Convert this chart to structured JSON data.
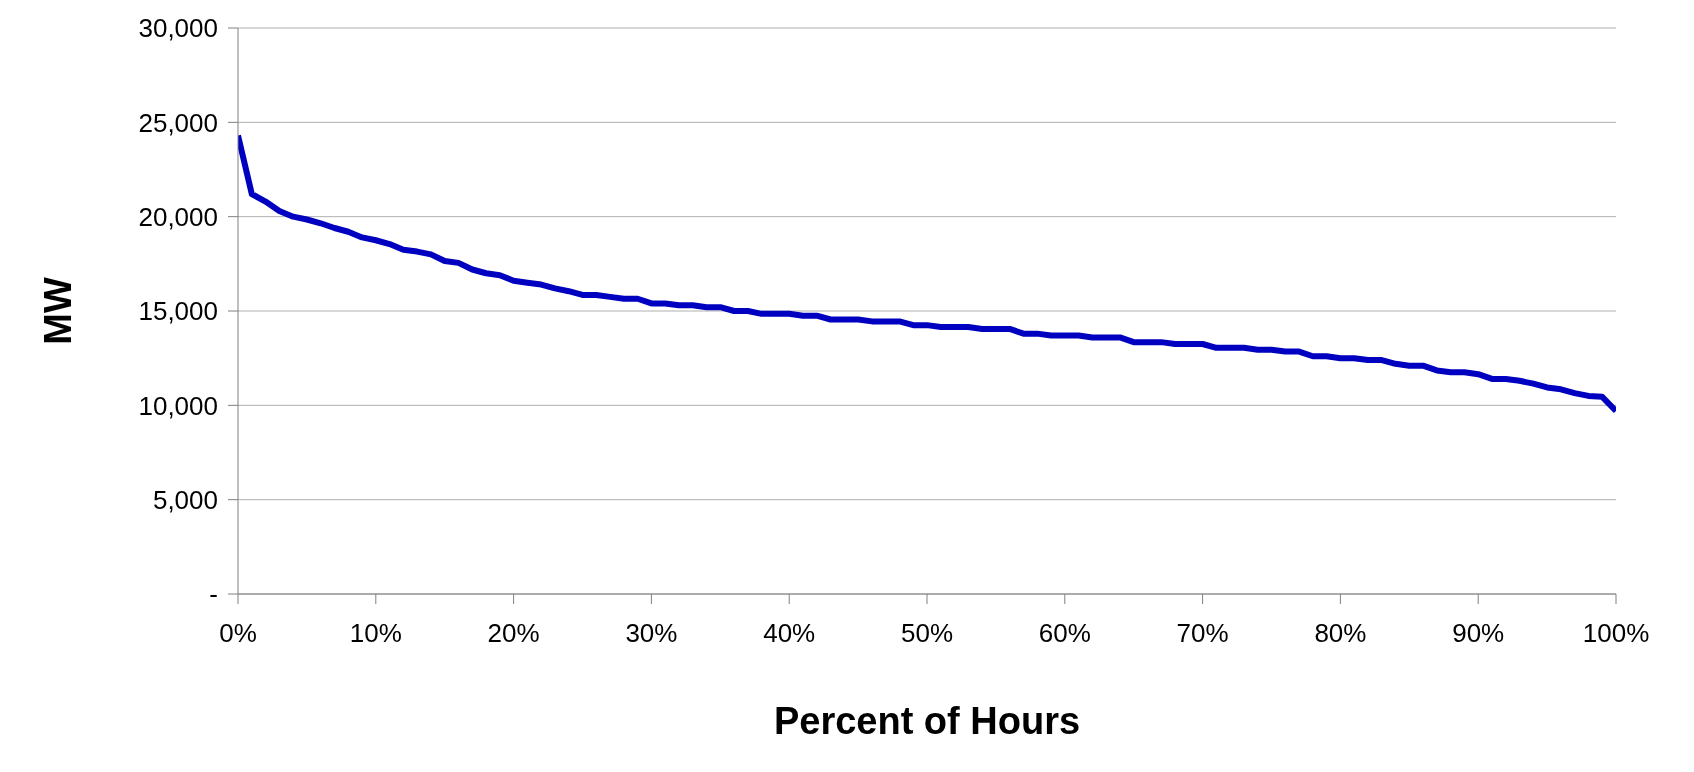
{
  "chart_data": {
    "type": "line",
    "xlabel": "Percent of Hours",
    "ylabel": "MW",
    "x": [
      0,
      1,
      2,
      3,
      4,
      5,
      6,
      7,
      8,
      9,
      10,
      11,
      12,
      13,
      14,
      15,
      16,
      17,
      18,
      19,
      20,
      21,
      22,
      23,
      24,
      25,
      26,
      27,
      28,
      29,
      30,
      31,
      32,
      33,
      34,
      35,
      36,
      37,
      38,
      39,
      40,
      41,
      42,
      43,
      44,
      45,
      46,
      47,
      48,
      49,
      50,
      51,
      52,
      53,
      54,
      55,
      56,
      57,
      58,
      59,
      60,
      61,
      62,
      63,
      64,
      65,
      66,
      67,
      68,
      69,
      70,
      71,
      72,
      73,
      74,
      75,
      76,
      77,
      78,
      79,
      80,
      81,
      82,
      83,
      84,
      85,
      86,
      87,
      88,
      89,
      90,
      91,
      92,
      93,
      94,
      95,
      96,
      97,
      98,
      99,
      100
    ],
    "series": [
      {
        "color": "#0000c0",
        "values": [
          24300,
          21200,
          20800,
          20300,
          20000,
          19850,
          19650,
          19400,
          19200,
          18900,
          18750,
          18550,
          18250,
          18150,
          18000,
          17650,
          17550,
          17200,
          17000,
          16900,
          16600,
          16500,
          16400,
          16200,
          16050,
          15850,
          15850,
          15750,
          15650,
          15650,
          15400,
          15400,
          15300,
          15300,
          15200,
          15200,
          15000,
          15000,
          14850,
          14850,
          14850,
          14750,
          14750,
          14550,
          14550,
          14550,
          14450,
          14450,
          14450,
          14250,
          14250,
          14150,
          14150,
          14150,
          14050,
          14050,
          14050,
          13800,
          13800,
          13700,
          13700,
          13700,
          13600,
          13600,
          13600,
          13350,
          13350,
          13350,
          13250,
          13250,
          13250,
          13050,
          13050,
          13050,
          12950,
          12950,
          12850,
          12850,
          12600,
          12600,
          12500,
          12500,
          12400,
          12400,
          12200,
          12100,
          12100,
          11850,
          11750,
          11750,
          11650,
          11400,
          11400,
          11300,
          11150,
          10950,
          10850,
          10650,
          10500,
          10450,
          9700
        ]
      }
    ],
    "xlim": [
      0,
      100
    ],
    "xticks": [
      {
        "value": 0,
        "label": "0%"
      },
      {
        "value": 10,
        "label": "10%"
      },
      {
        "value": 20,
        "label": "20%"
      },
      {
        "value": 30,
        "label": "30%"
      },
      {
        "value": 40,
        "label": "40%"
      },
      {
        "value": 50,
        "label": "50%"
      },
      {
        "value": 60,
        "label": "60%"
      },
      {
        "value": 70,
        "label": "70%"
      },
      {
        "value": 80,
        "label": "80%"
      },
      {
        "value": 90,
        "label": "90%"
      },
      {
        "value": 100,
        "label": "100%"
      }
    ],
    "ylim": [
      0,
      30000
    ],
    "yticks": [
      {
        "value": 0,
        "label": "-"
      },
      {
        "value": 5000,
        "label": "5,000"
      },
      {
        "value": 10000,
        "label": "10,000"
      },
      {
        "value": 15000,
        "label": "15,000"
      },
      {
        "value": 20000,
        "label": "20,000"
      },
      {
        "value": 25000,
        "label": "25,000"
      },
      {
        "value": 30000,
        "label": "30,000"
      }
    ],
    "grid": "y",
    "legend": false,
    "marker": "none",
    "line_style": "solid"
  }
}
